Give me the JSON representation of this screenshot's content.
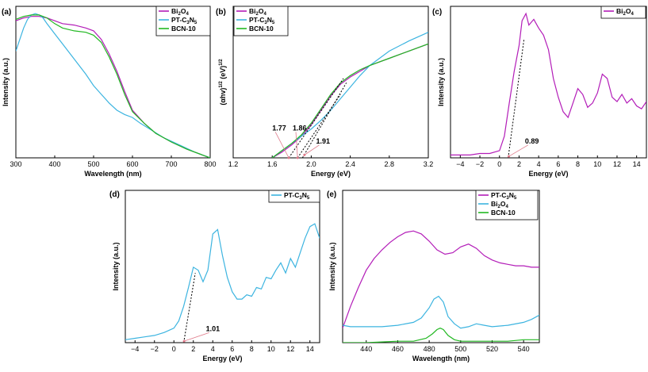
{
  "colors": {
    "bi2o4": "#b31db8",
    "ptc3n5": "#3cb4e0",
    "bcn10": "#22b822",
    "dashed": "#000000",
    "arrow": "#e07a8a"
  },
  "chart_data": [
    {
      "id": "a",
      "panel_label": "(a)",
      "type": "line",
      "xlabel": "Wavelength (nm)",
      "ylabel": "Intensity (a.u.)",
      "xlim": [
        300,
        800
      ],
      "ylim": [
        0,
        1.05
      ],
      "xticks": [
        300,
        400,
        500,
        600,
        700,
        800
      ],
      "xtick_labels": [
        "300",
        "400",
        "500",
        "600",
        "700",
        "800"
      ],
      "legend_position": "top-right",
      "series": [
        {
          "key": "bi2o4",
          "legend": [
            "Bi",
            "2",
            "O",
            "4"
          ],
          "x": [
            300,
            320,
            340,
            360,
            380,
            400,
            420,
            450,
            480,
            500,
            520,
            540,
            560,
            580,
            600,
            630,
            660,
            700,
            740,
            780,
            800
          ],
          "y": [
            0.95,
            0.97,
            0.98,
            0.98,
            0.97,
            0.95,
            0.93,
            0.92,
            0.9,
            0.88,
            0.82,
            0.72,
            0.6,
            0.46,
            0.33,
            0.24,
            0.17,
            0.11,
            0.06,
            0.02,
            0.0
          ]
        },
        {
          "key": "ptc3n5",
          "legend": [
            "PT-C",
            "3",
            "N",
            "5"
          ],
          "x": [
            300,
            310,
            320,
            330,
            340,
            350,
            360,
            370,
            380,
            400,
            420,
            440,
            460,
            480,
            500,
            520,
            540,
            560,
            580,
            600,
            620,
            650,
            680,
            720,
            760,
            800
          ],
          "y": [
            0.74,
            0.82,
            0.9,
            0.96,
            0.99,
            1.0,
            0.99,
            0.97,
            0.93,
            0.86,
            0.79,
            0.72,
            0.65,
            0.58,
            0.5,
            0.44,
            0.38,
            0.33,
            0.3,
            0.28,
            0.24,
            0.19,
            0.14,
            0.09,
            0.04,
            0.0
          ]
        },
        {
          "key": "bcn10",
          "legend": [
            "BCN-10"
          ],
          "x": [
            300,
            320,
            340,
            360,
            380,
            400,
            420,
            450,
            480,
            500,
            520,
            540,
            560,
            580,
            600,
            630,
            660,
            700,
            740,
            780,
            800
          ],
          "y": [
            0.96,
            0.98,
            0.99,
            0.99,
            0.97,
            0.93,
            0.9,
            0.88,
            0.87,
            0.85,
            0.8,
            0.7,
            0.58,
            0.44,
            0.32,
            0.24,
            0.17,
            0.11,
            0.06,
            0.02,
            0.0
          ]
        }
      ]
    },
    {
      "id": "b",
      "panel_label": "(b)",
      "type": "line",
      "xlabel": "Energy (eV)",
      "ylabel": [
        "(αhv)",
        "1/2",
        " (eV)",
        "1/2"
      ],
      "xlim": [
        1.2,
        3.2
      ],
      "ylim": [
        0,
        1.05
      ],
      "xticks": [
        1.2,
        1.6,
        2.0,
        2.4,
        2.8,
        3.2
      ],
      "xtick_labels": [
        "1.2",
        "1.6",
        "2.0",
        "2.4",
        "2.8",
        "3.2"
      ],
      "legend_position": "top-left",
      "series": [
        {
          "key": "bi2o4",
          "legend": [
            "Bi",
            "2",
            "O",
            "4"
          ],
          "x": [
            1.6,
            1.7,
            1.8,
            1.9,
            2.0,
            2.1,
            2.2,
            2.3,
            2.4,
            2.5,
            2.6,
            2.8,
            3.0,
            3.2
          ],
          "y": [
            0.0,
            0.04,
            0.09,
            0.15,
            0.23,
            0.33,
            0.43,
            0.51,
            0.56,
            0.6,
            0.64,
            0.69,
            0.74,
            0.79
          ]
        },
        {
          "key": "ptc3n5",
          "legend": [
            "PT-C",
            "3",
            "N",
            "5"
          ],
          "x": [
            1.6,
            1.7,
            1.8,
            1.9,
            2.0,
            2.1,
            2.2,
            2.3,
            2.4,
            2.5,
            2.6,
            2.8,
            3.0,
            3.2
          ],
          "y": [
            0.0,
            0.05,
            0.1,
            0.15,
            0.2,
            0.26,
            0.33,
            0.41,
            0.49,
            0.57,
            0.64,
            0.74,
            0.81,
            0.87
          ]
        },
        {
          "key": "bcn10",
          "legend": [
            "BCN-10"
          ],
          "x": [
            1.6,
            1.7,
            1.8,
            1.9,
            2.0,
            2.1,
            2.2,
            2.3,
            2.4,
            2.5,
            2.6,
            2.8,
            3.0,
            3.2
          ],
          "y": [
            0.0,
            0.05,
            0.1,
            0.16,
            0.24,
            0.34,
            0.44,
            0.52,
            0.57,
            0.61,
            0.64,
            0.69,
            0.74,
            0.79
          ]
        }
      ],
      "tangents": [
        {
          "x": [
            1.77,
            2.33
          ],
          "y": [
            0.0,
            0.55
          ]
        },
        {
          "x": [
            1.86,
            2.3
          ],
          "y": [
            0.0,
            0.44
          ]
        },
        {
          "x": [
            1.91,
            2.36
          ],
          "y": [
            0.0,
            0.52
          ]
        }
      ],
      "annotations": [
        {
          "text": "1.77",
          "x": 1.6,
          "y": 0.19,
          "tx": 1.77,
          "ty": 0.0
        },
        {
          "text": "1.86",
          "x": 1.81,
          "y": 0.19,
          "tx": 1.86,
          "ty": 0.0
        },
        {
          "text": "1.91",
          "x": 2.05,
          "y": 0.1,
          "tx": 1.93,
          "ty": 0.02
        }
      ]
    },
    {
      "id": "c",
      "panel_label": "(c)",
      "type": "line",
      "xlabel": "Energy (eV)",
      "ylabel": "Intensity (a.u.)",
      "xlim": [
        -5,
        15
      ],
      "ylim": [
        0,
        1.05
      ],
      "xticks": [
        -4,
        -2,
        0,
        2,
        4,
        6,
        8,
        10,
        12,
        14
      ],
      "xtick_labels": [
        "−4",
        "−2",
        "0",
        "2",
        "4",
        "6",
        "8",
        "10",
        "12",
        "14"
      ],
      "legend_position": "top-right",
      "series": [
        {
          "key": "bi2o4",
          "legend": [
            "Bi",
            "2",
            "O",
            "4"
          ],
          "x": [
            -5,
            -4,
            -3,
            -2,
            -1,
            0,
            0.5,
            1,
            1.5,
            2,
            2.3,
            2.7,
            3,
            3.5,
            4,
            4.5,
            5,
            5.5,
            6,
            6.5,
            7,
            7.5,
            8,
            8.5,
            9,
            9.5,
            10,
            10.5,
            11,
            11.5,
            12,
            12.5,
            13,
            13.5,
            14,
            14.5,
            15
          ],
          "y": [
            0.02,
            0.02,
            0.02,
            0.03,
            0.03,
            0.05,
            0.15,
            0.38,
            0.6,
            0.78,
            0.95,
            1.0,
            0.92,
            0.96,
            0.9,
            0.85,
            0.75,
            0.55,
            0.42,
            0.32,
            0.28,
            0.38,
            0.48,
            0.44,
            0.35,
            0.38,
            0.45,
            0.58,
            0.55,
            0.42,
            0.39,
            0.44,
            0.38,
            0.41,
            0.36,
            0.34,
            0.39
          ]
        }
      ],
      "tangents": [
        {
          "x": [
            0.89,
            2.5
          ],
          "y": [
            0.0,
            0.82
          ]
        }
      ],
      "annotations": [
        {
          "text": "0.89",
          "x": 2.6,
          "y": 0.1,
          "tx": 0.95,
          "ty": 0.01
        }
      ]
    },
    {
      "id": "d",
      "panel_label": "(d)",
      "type": "line",
      "xlabel": "Energy (eV)",
      "ylabel": "Intensity (a.u.)",
      "xlim": [
        -5,
        15
      ],
      "ylim": [
        0,
        1.05
      ],
      "xticks": [
        -4,
        -2,
        0,
        2,
        4,
        6,
        8,
        10,
        12,
        14
      ],
      "xtick_labels": [
        "−4",
        "−2",
        "0",
        "2",
        "4",
        "6",
        "8",
        "10",
        "12",
        "14"
      ],
      "legend_position": "top-right",
      "series": [
        {
          "key": "ptc3n5",
          "legend": [
            "PT-C",
            "3",
            "N",
            "5"
          ],
          "x": [
            -5,
            -4,
            -3,
            -2,
            -1,
            0,
            0.5,
            1,
            1.5,
            2,
            2.5,
            3,
            3.5,
            4,
            4.5,
            5,
            5.5,
            6,
            6.5,
            7,
            7.5,
            8,
            8.5,
            9,
            9.5,
            10,
            10.5,
            11,
            11.5,
            12,
            12.5,
            13,
            13.5,
            14,
            14.5,
            15
          ],
          "y": [
            0.02,
            0.03,
            0.04,
            0.05,
            0.07,
            0.1,
            0.15,
            0.25,
            0.38,
            0.52,
            0.5,
            0.42,
            0.5,
            0.75,
            0.78,
            0.6,
            0.45,
            0.35,
            0.3,
            0.3,
            0.33,
            0.32,
            0.38,
            0.37,
            0.45,
            0.44,
            0.5,
            0.55,
            0.48,
            0.58,
            0.52,
            0.62,
            0.72,
            0.8,
            0.82,
            0.72
          ]
        }
      ],
      "tangents": [
        {
          "x": [
            1.01,
            2.2
          ],
          "y": [
            0.0,
            0.48
          ]
        }
      ],
      "annotations": [
        {
          "text": "1.01",
          "x": 3.3,
          "y": 0.08,
          "tx": 1.05,
          "ty": 0.01
        }
      ]
    },
    {
      "id": "e",
      "panel_label": "(e)",
      "type": "line",
      "xlabel": "Wavelength (nm)",
      "ylabel": "Intensity (a.u.)",
      "xlim": [
        425,
        550
      ],
      "ylim": [
        0,
        1.05
      ],
      "xticks": [
        440,
        460,
        480,
        500,
        520,
        540
      ],
      "xtick_labels": [
        "440",
        "460",
        "480",
        "500",
        "520",
        "540"
      ],
      "legend_position": "top-left",
      "series": [
        {
          "key": "ptc3n5",
          "color_key": "bi2o4",
          "legend": [
            "PT-C",
            "3",
            "N",
            "5"
          ],
          "x": [
            425,
            430,
            435,
            440,
            445,
            450,
            455,
            460,
            465,
            470,
            475,
            480,
            485,
            490,
            495,
            500,
            505,
            510,
            515,
            520,
            525,
            530,
            535,
            540,
            545,
            550
          ],
          "y": [
            0.1,
            0.25,
            0.38,
            0.5,
            0.58,
            0.64,
            0.69,
            0.73,
            0.76,
            0.77,
            0.75,
            0.7,
            0.64,
            0.61,
            0.62,
            0.66,
            0.68,
            0.65,
            0.6,
            0.57,
            0.55,
            0.54,
            0.53,
            0.53,
            0.52,
            0.52
          ]
        },
        {
          "key": "bi2o4",
          "color_key": "ptc3n5",
          "legend": [
            "Bi",
            "2",
            "O",
            "4"
          ],
          "x": [
            425,
            430,
            440,
            450,
            460,
            470,
            475,
            480,
            483,
            486,
            489,
            492,
            496,
            500,
            505,
            510,
            515,
            520,
            530,
            540,
            545,
            550
          ],
          "y": [
            0.12,
            0.11,
            0.11,
            0.11,
            0.12,
            0.14,
            0.17,
            0.24,
            0.3,
            0.32,
            0.28,
            0.18,
            0.13,
            0.1,
            0.11,
            0.13,
            0.12,
            0.11,
            0.12,
            0.14,
            0.16,
            0.19
          ]
        },
        {
          "key": "bcn10",
          "color_key": "bcn10",
          "legend": [
            "BCN-10"
          ],
          "x": [
            425,
            440,
            460,
            470,
            478,
            482,
            485,
            487,
            489,
            492,
            496,
            500,
            510,
            520,
            530,
            540,
            550
          ],
          "y": [
            0.0,
            0.0,
            0.01,
            0.01,
            0.03,
            0.06,
            0.09,
            0.1,
            0.09,
            0.05,
            0.02,
            0.01,
            0.01,
            0.01,
            0.01,
            0.02,
            0.02
          ]
        }
      ]
    }
  ]
}
